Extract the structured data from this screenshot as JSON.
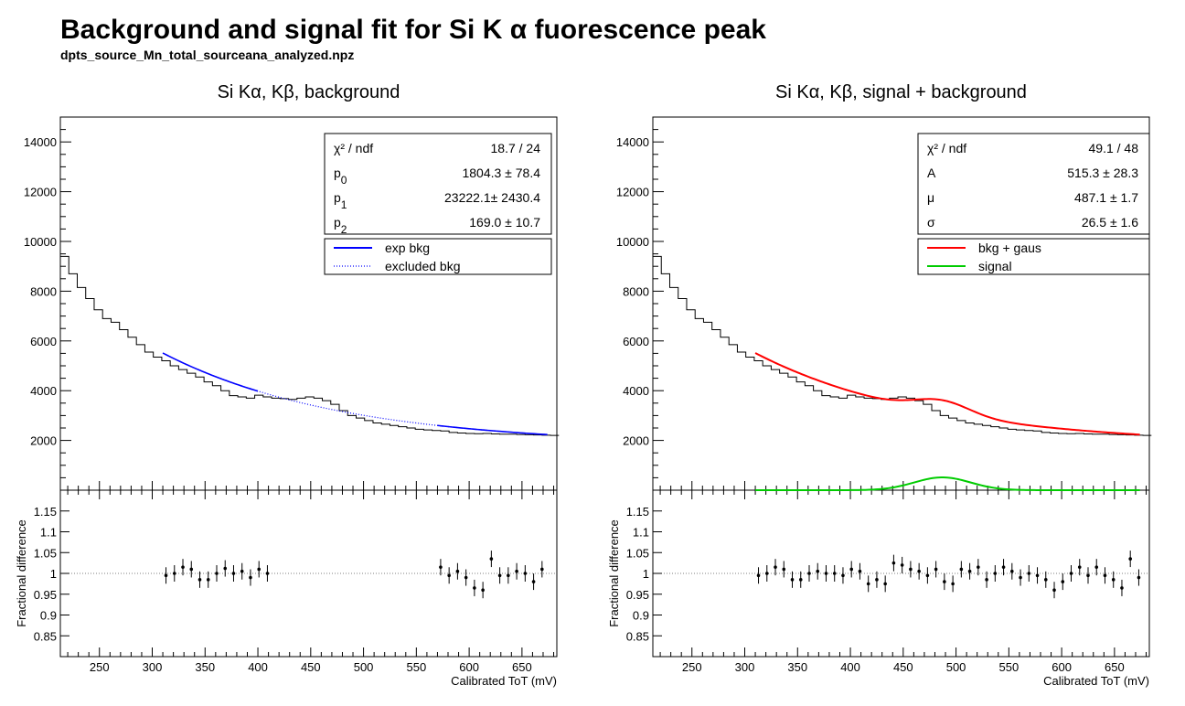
{
  "title": "Background and signal fit for Si K  α fuorescence peak",
  "subtitle": "dpts_source_Mn_total_sourceana_analyzed.npz",
  "colors": {
    "data": "#000000",
    "exp_bkg": "#0000ff",
    "bkg_gaus": "#ff0000",
    "signal": "#00cc00"
  },
  "chart_data": [
    {
      "type": "line",
      "panel": "left",
      "title": "Si Kα, Kβ, background",
      "xlabel": "Calibrated ToT (mV)",
      "ylabel": "",
      "xlim": [
        213,
        683
      ],
      "ylim": [
        0,
        15000
      ],
      "xticks": [
        250,
        300,
        350,
        400,
        450,
        500,
        550,
        600,
        650
      ],
      "yticks": [
        2000,
        4000,
        6000,
        8000,
        10000,
        12000,
        14000
      ],
      "stats": [
        {
          "label": "χ² / ndf",
          "value": "18.7 / 24"
        },
        {
          "label": "p0",
          "value": "1804.3 ± 78.4"
        },
        {
          "label": "p1",
          "value": "23222.1± 2430.4"
        },
        {
          "label": "p2",
          "value": "169.0 ± 10.7"
        }
      ],
      "legend": [
        {
          "name": "exp bkg",
          "style": "solid",
          "color": "#0000ff"
        },
        {
          "name": "excluded bkg",
          "style": "dotted",
          "color": "#0000ff"
        }
      ],
      "histogram": {
        "bin_width": 8,
        "x_start": 213,
        "counts": [
          9400,
          8700,
          8150,
          7700,
          7250,
          6900,
          6750,
          6450,
          6150,
          5850,
          5550,
          5350,
          5200,
          5000,
          4850,
          4700,
          4550,
          4350,
          4200,
          4000,
          3800,
          3750,
          3700,
          3820,
          3750,
          3700,
          3680,
          3650,
          3700,
          3750,
          3700,
          3600,
          3450,
          3200,
          3000,
          2900,
          2800,
          2700,
          2650,
          2600,
          2550,
          2500,
          2450,
          2420,
          2400,
          2380,
          2320,
          2300,
          2280,
          2270,
          2280,
          2260,
          2250,
          2250,
          2240,
          2230,
          2220,
          2210,
          2200
        ]
      },
      "fit_params": {
        "p0": 1804.3,
        "p1": 23222.1,
        "p2": 169.0
      },
      "fit_ranges": [
        [
          310,
          400
        ],
        [
          570,
          675
        ]
      ],
      "ratio": {
        "ylabel": "Fractional difference",
        "ylim": [
          0.8,
          1.2
        ],
        "yticks": [
          0.85,
          0.9,
          0.95,
          1,
          1.05,
          1.1,
          1.15
        ],
        "points": [
          [
            313,
            0.995
          ],
          [
            321,
            1.0
          ],
          [
            329,
            1.015
          ],
          [
            337,
            1.01
          ],
          [
            345,
            0.985
          ],
          [
            353,
            0.985
          ],
          [
            361,
            1.0
          ],
          [
            369,
            1.012
          ],
          [
            377,
            1.0
          ],
          [
            385,
            1.005
          ],
          [
            393,
            0.99
          ],
          [
            401,
            1.01
          ],
          [
            409,
            1.0
          ],
          [
            573,
            1.015
          ],
          [
            581,
            0.995
          ],
          [
            589,
            1.005
          ],
          [
            597,
            0.99
          ],
          [
            605,
            0.965
          ],
          [
            613,
            0.96
          ],
          [
            621,
            1.035
          ],
          [
            629,
            0.995
          ],
          [
            637,
            0.995
          ],
          [
            645,
            1.005
          ],
          [
            653,
            1.0
          ],
          [
            661,
            0.98
          ],
          [
            669,
            1.01
          ]
        ]
      }
    },
    {
      "type": "line",
      "panel": "right",
      "title": "Si Kα, Kβ, signal + background",
      "xlabel": "Calibrated ToT (mV)",
      "ylabel": "",
      "xlim": [
        213,
        683
      ],
      "ylim": [
        0,
        15000
      ],
      "xticks": [
        250,
        300,
        350,
        400,
        450,
        500,
        550,
        600,
        650
      ],
      "yticks": [
        2000,
        4000,
        6000,
        8000,
        10000,
        12000,
        14000
      ],
      "stats": [
        {
          "label": "χ² / ndf",
          "value": "49.1 / 48"
        },
        {
          "label": "A",
          "value": "515.3 ± 28.3"
        },
        {
          "label": "μ",
          "value": "487.1 ± 1.7"
        },
        {
          "label": "σ",
          "value": "26.5 ± 1.6"
        }
      ],
      "legend": [
        {
          "name": "bkg + gaus",
          "style": "solid",
          "color": "#ff0000"
        },
        {
          "name": "signal",
          "style": "solid",
          "color": "#00cc00"
        }
      ],
      "gaus": {
        "A": 515.3,
        "mu": 487.1,
        "sigma": 26.5
      },
      "fit_range": [
        310,
        675
      ],
      "ratio": {
        "ylabel": "Fractional difference",
        "ylim": [
          0.8,
          1.2
        ],
        "yticks": [
          0.85,
          0.9,
          0.95,
          1,
          1.05,
          1.1,
          1.15
        ],
        "points": [
          [
            313,
            0.995
          ],
          [
            321,
            1.0
          ],
          [
            329,
            1.015
          ],
          [
            337,
            1.01
          ],
          [
            345,
            0.985
          ],
          [
            353,
            0.985
          ],
          [
            361,
            1.0
          ],
          [
            369,
            1.005
          ],
          [
            377,
            1.0
          ],
          [
            385,
            1.0
          ],
          [
            393,
            0.995
          ],
          [
            401,
            1.01
          ],
          [
            409,
            1.005
          ],
          [
            417,
            0.975
          ],
          [
            425,
            0.985
          ],
          [
            433,
            0.975
          ],
          [
            441,
            1.025
          ],
          [
            449,
            1.02
          ],
          [
            457,
            1.01
          ],
          [
            465,
            1.005
          ],
          [
            473,
            0.995
          ],
          [
            481,
            1.01
          ],
          [
            489,
            0.98
          ],
          [
            497,
            0.975
          ],
          [
            505,
            1.01
          ],
          [
            513,
            1.005
          ],
          [
            521,
            1.015
          ],
          [
            529,
            0.985
          ],
          [
            537,
            1.0
          ],
          [
            545,
            1.015
          ],
          [
            553,
            1.005
          ],
          [
            561,
            0.99
          ],
          [
            569,
            1.0
          ],
          [
            577,
            0.995
          ],
          [
            585,
            0.985
          ],
          [
            593,
            0.96
          ],
          [
            601,
            0.98
          ],
          [
            609,
            1.0
          ],
          [
            617,
            1.015
          ],
          [
            625,
            0.995
          ],
          [
            633,
            1.015
          ],
          [
            641,
            0.995
          ],
          [
            649,
            0.985
          ],
          [
            657,
            0.965
          ],
          [
            665,
            1.035
          ],
          [
            673,
            0.99
          ]
        ]
      }
    }
  ]
}
